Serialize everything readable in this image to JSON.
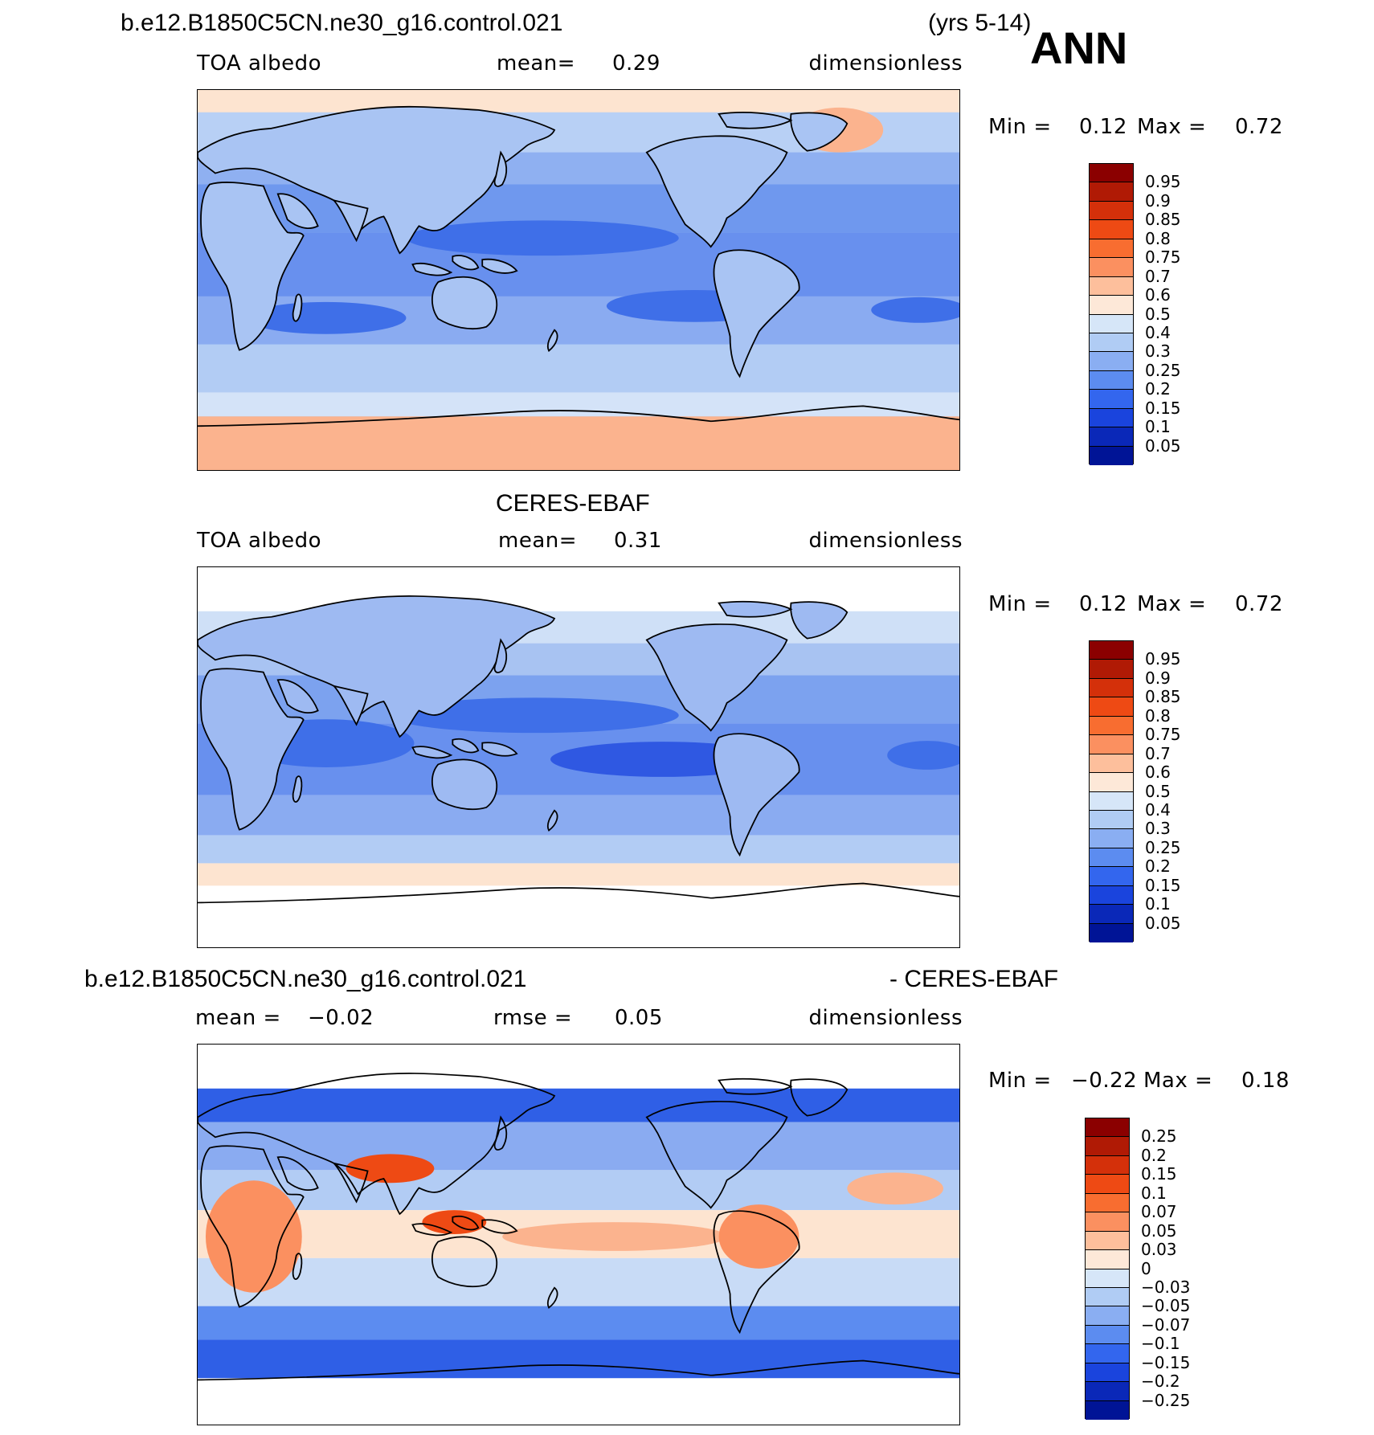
{
  "header": {
    "case_name": "b.e12.B1850C5CN.ne30_g16.control.021",
    "years": "(yrs 5-14)",
    "season": "ANN"
  },
  "panels": [
    {
      "title": "",
      "left": "TOA albedo",
      "middle_label": "mean=",
      "middle_value": "0.29",
      "right": "dimensionless",
      "min_label": "Min =",
      "min_value": "0.12",
      "max_label": "Max =",
      "max_value": "0.72"
    },
    {
      "title": "CERES-EBAF",
      "left": "TOA albedo",
      "middle_label": "mean=",
      "middle_value": "0.31",
      "right": "dimensionless",
      "min_label": "Min =",
      "min_value": "0.12",
      "max_label": "Max =",
      "max_value": "0.72"
    },
    {
      "title_left": "b.e12.B1850C5CN.ne30_g16.control.021",
      "title_right": "- CERES-EBAF",
      "left_label": "mean =",
      "left_value": "−0.02",
      "middle_label": "rmse =",
      "middle_value": "0.05",
      "right": "dimensionless",
      "min_label": "Min =",
      "min_value": "−0.22",
      "max_label": "Max =",
      "max_value": "0.18"
    }
  ],
  "colorbar_abs": {
    "labels": [
      "0.95",
      "0.9",
      "0.85",
      "0.8",
      "0.75",
      "0.7",
      "0.6",
      "0.5",
      "0.4",
      "0.3",
      "0.25",
      "0.2",
      "0.15",
      "0.1",
      "0.05"
    ],
    "colors": [
      "#8b0000",
      "#b01a05",
      "#d4300a",
      "#ee4a14",
      "#f86d30",
      "#fb9060",
      "#fdbf9c",
      "#fde8d8",
      "#d6e6f8",
      "#b0ccf4",
      "#8aaef2",
      "#5c8cf0",
      "#3366ee",
      "#1a44dd",
      "#0a28b8",
      "#001496"
    ]
  },
  "colorbar_diff": {
    "labels": [
      "0.25",
      "0.2",
      "0.15",
      "0.1",
      "0.07",
      "0.05",
      "0.03",
      "0",
      "−0.03",
      "−0.05",
      "−0.07",
      "−0.1",
      "−0.15",
      "−0.2",
      "−0.25"
    ],
    "colors": [
      "#8b0000",
      "#b01a05",
      "#d4300a",
      "#ee4a14",
      "#f86d30",
      "#fb9060",
      "#fdbf9c",
      "#fde8d8",
      "#d6e6f8",
      "#b0ccf4",
      "#8aaef2",
      "#5c8cf0",
      "#3366ee",
      "#1a44dd",
      "#0a28b8",
      "#001496"
    ]
  }
}
